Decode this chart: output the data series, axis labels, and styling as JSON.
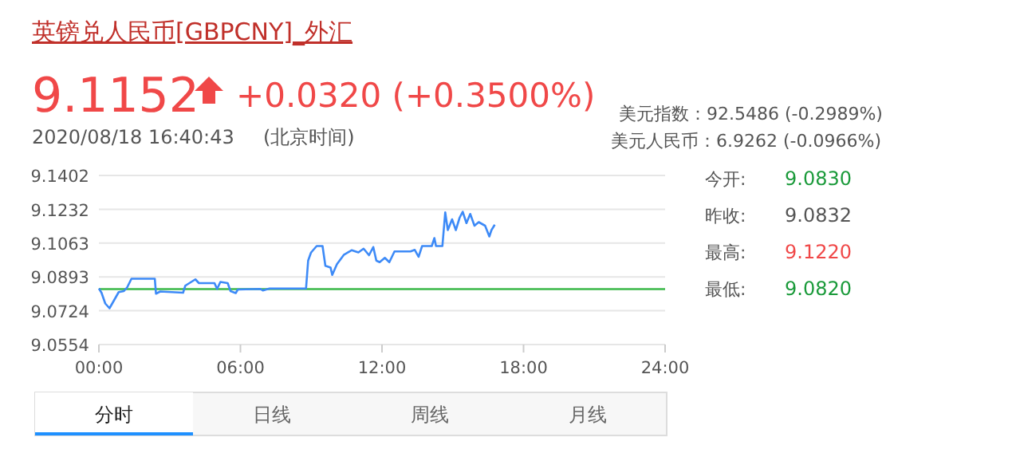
{
  "chart_data": {
    "type": "line",
    "title": "英镑兑人民币[GBPCNY]_外汇",
    "x": [
      0,
      0.11,
      0.27,
      0.45,
      0.61,
      0.84,
      1.06,
      1.2,
      1.38,
      2.37,
      2.42,
      2.6,
      3.57,
      3.66,
      4.09,
      4.24,
      4.9,
      5.01,
      5.15,
      5.46,
      5.58,
      5.8,
      5.89,
      6.84,
      6.95,
      7.23,
      8.78,
      8.87,
      8.99,
      9.23,
      9.48,
      9.6,
      9.82,
      9.89,
      10.09,
      10.39,
      10.72,
      11.0,
      11.22,
      11.45,
      11.63,
      11.76,
      11.9,
      12.12,
      12.31,
      12.53,
      13.21,
      13.39,
      13.55,
      13.7,
      14.11,
      14.22,
      14.29,
      14.56,
      14.68,
      14.79,
      14.97,
      15.13,
      15.29,
      15.42,
      15.58,
      15.74,
      15.92,
      16.1,
      16.37,
      16.55,
      16.64,
      16.78
    ],
    "series": [
      {
        "color": "#3d8af7",
        "values": [
          9.0835,
          9.0814,
          9.076,
          9.0736,
          9.0769,
          9.0817,
          9.0822,
          9.0841,
          9.0884,
          9.0884,
          9.0809,
          9.082,
          9.0814,
          9.0849,
          9.0881,
          9.0862,
          9.0862,
          9.0833,
          9.0868,
          9.0862,
          9.0822,
          9.0812,
          9.083,
          9.0833,
          9.0825,
          9.0835,
          9.0835,
          9.0975,
          9.1015,
          9.1048,
          9.1048,
          9.0949,
          9.094,
          9.0903,
          9.0957,
          9.1005,
          9.1027,
          9.1016,
          9.1035,
          9.1002,
          9.1043,
          9.0975,
          9.0967,
          9.0989,
          9.0967,
          9.1021,
          9.1021,
          9.1029,
          9.0994,
          9.1048,
          9.1048,
          9.1088,
          9.1048,
          9.1048,
          9.1217,
          9.1128,
          9.1182,
          9.1128,
          9.119,
          9.122,
          9.1163,
          9.1209,
          9.115,
          9.1168,
          9.115,
          9.1096,
          9.1128,
          9.1155
        ]
      }
    ],
    "xlim": [
      0,
      24
    ],
    "xticks": [
      {
        "value": 0,
        "label": "00:00"
      },
      {
        "value": 6,
        "label": "06:00"
      },
      {
        "value": 12,
        "label": "12:00"
      },
      {
        "value": 18,
        "label": "18:00"
      },
      {
        "value": 24,
        "label": "24:00"
      }
    ],
    "ylim": [
      9.0554,
      9.1402
    ],
    "yticks": [
      9.0554,
      9.0724,
      9.0893,
      9.1063,
      9.1232,
      9.1402
    ],
    "grid": "y",
    "ref_lines": [
      {
        "axis": "y",
        "value": 9.0832,
        "color": "#3cb94a"
      }
    ],
    "annotations": [
      "9.1152",
      "+0.0320 (+0.3500%)",
      "2020/08/18 16:40:43",
      "(北京时间)",
      "美元指数：92.5486 (-0.2989%)",
      "美元人民币：6.9262 (-0.0966%)",
      "今开:",
      "9.0830",
      "昨收:",
      "9.0832",
      "最高:",
      "9.1220",
      "最低:",
      "9.0820",
      "分时",
      "日线",
      "周线",
      "月线"
    ]
  }
}
